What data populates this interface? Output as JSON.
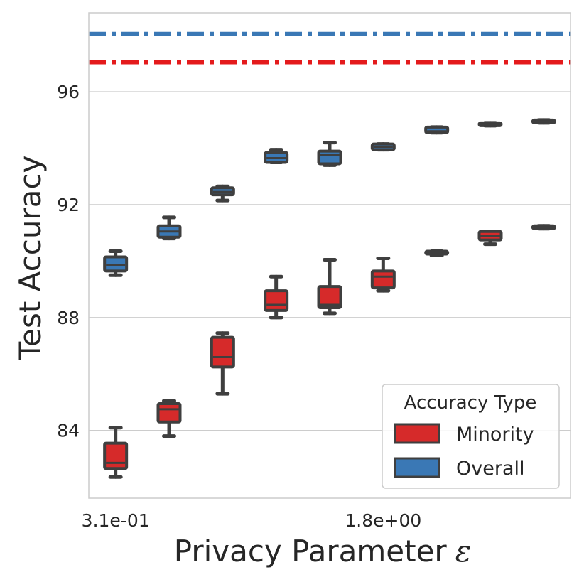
{
  "chart_data": {
    "type": "box",
    "xlabel": "Privacy Parameter",
    "xlabel_symbol": "ε",
    "ylabel": "Test Accuracy",
    "ylim": [
      81.6,
      98.8
    ],
    "yticks": [
      84,
      88,
      92,
      96
    ],
    "ytick_labels": [
      "84",
      "88",
      "92",
      "96"
    ],
    "xtick_labels": [
      {
        "index": 0,
        "label": "3.1e-01"
      },
      {
        "index": 5,
        "label": "1.8e+00"
      }
    ],
    "grid": true,
    "legend": {
      "title": "Accuracy Type",
      "position": "lower-right",
      "entries": [
        {
          "name": "Minority",
          "color": "#d62a2a"
        },
        {
          "name": "Overall",
          "color": "#3a78b5"
        }
      ]
    },
    "reference_lines": [
      {
        "name": "Overall baseline",
        "y": 98.05,
        "color": "#3a78b5",
        "style": "dashdot"
      },
      {
        "name": "Minority baseline",
        "y": 97.05,
        "color": "#e41a1c",
        "style": "dashdot"
      }
    ],
    "n_positions": 9,
    "series": [
      {
        "name": "Minority",
        "color": "#d62a2a",
        "boxes": [
          {
            "whislo": 82.35,
            "q1": 82.65,
            "med": 82.85,
            "q3": 83.55,
            "whishi": 84.1
          },
          {
            "whislo": 83.8,
            "q1": 84.3,
            "med": 84.75,
            "q3": 84.95,
            "whishi": 85.05
          },
          {
            "whislo": 85.3,
            "q1": 86.25,
            "med": 86.6,
            "q3": 87.3,
            "whishi": 87.45
          },
          {
            "whislo": 88.0,
            "q1": 88.25,
            "med": 88.45,
            "q3": 88.95,
            "whishi": 89.45
          },
          {
            "whislo": 88.15,
            "q1": 88.35,
            "med": 88.45,
            "q3": 89.1,
            "whishi": 90.05
          },
          {
            "whislo": 88.95,
            "q1": 89.05,
            "med": 89.45,
            "q3": 89.65,
            "whishi": 90.1
          },
          {
            "whislo": 90.2,
            "q1": 90.25,
            "med": 90.3,
            "q3": 90.35,
            "whishi": 90.35
          },
          {
            "whislo": 90.6,
            "q1": 90.75,
            "med": 90.9,
            "q3": 91.05,
            "whishi": 91.05
          },
          {
            "whislo": 91.15,
            "q1": 91.15,
            "med": 91.2,
            "q3": 91.25,
            "whishi": 91.25
          }
        ]
      },
      {
        "name": "Overall",
        "color": "#3a78b5",
        "boxes": [
          {
            "whislo": 89.5,
            "q1": 89.65,
            "med": 89.85,
            "q3": 90.15,
            "whishi": 90.35
          },
          {
            "whislo": 90.8,
            "q1": 90.85,
            "med": 91.05,
            "q3": 91.25,
            "whishi": 91.55
          },
          {
            "whislo": 92.15,
            "q1": 92.35,
            "med": 92.45,
            "q3": 92.6,
            "whishi": 92.65
          },
          {
            "whislo": 93.5,
            "q1": 93.5,
            "med": 93.65,
            "q3": 93.85,
            "whishi": 93.95
          },
          {
            "whislo": 93.4,
            "q1": 93.45,
            "med": 93.75,
            "q3": 93.9,
            "whishi": 94.2
          },
          {
            "whislo": 93.95,
            "q1": 93.95,
            "med": 94.05,
            "q3": 94.15,
            "whishi": 94.15
          },
          {
            "whislo": 94.55,
            "q1": 94.55,
            "med": 94.6,
            "q3": 94.75,
            "whishi": 94.75
          },
          {
            "whislo": 94.8,
            "q1": 94.8,
            "med": 94.85,
            "q3": 94.9,
            "whishi": 94.9
          },
          {
            "whislo": 94.9,
            "q1": 94.9,
            "med": 94.95,
            "q3": 95.0,
            "whishi": 95.0
          }
        ]
      }
    ]
  }
}
